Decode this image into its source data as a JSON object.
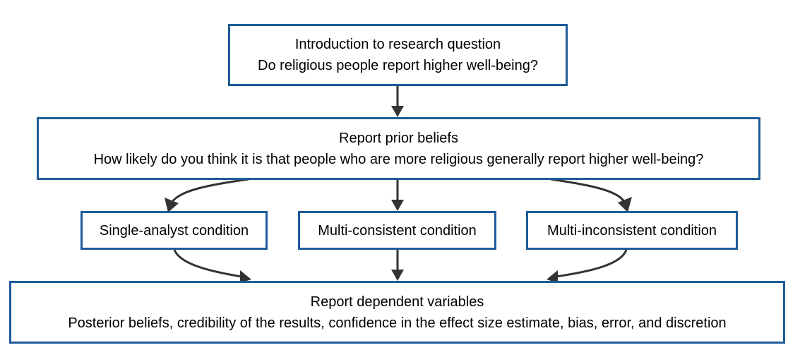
{
  "nodes": {
    "intro": {
      "line1": "Introduction to research question",
      "line2": "Do religious people report higher well-being?"
    },
    "prior": {
      "line1": "Report prior beliefs",
      "line2": "How likely do you think it is that people who are more religious generally report higher well-being?"
    },
    "single": {
      "line1": "Single-analyst condition"
    },
    "consistent": {
      "line1": "Multi-consistent condition"
    },
    "inconsistent": {
      "line1": "Multi-inconsistent condition"
    },
    "dependent": {
      "line1": "Report dependent variables",
      "line2": "Posterior beliefs, credibility of the results, confidence in the effect size estimate, bias, error, and discretion"
    }
  },
  "edges": [
    {
      "from": "intro",
      "to": "prior"
    },
    {
      "from": "prior",
      "to": "single"
    },
    {
      "from": "prior",
      "to": "consistent"
    },
    {
      "from": "prior",
      "to": "inconsistent"
    },
    {
      "from": "single",
      "to": "dependent"
    },
    {
      "from": "consistent",
      "to": "dependent"
    },
    {
      "from": "inconsistent",
      "to": "dependent"
    }
  ],
  "colors": {
    "node_border": "#1f5c99",
    "arrow": "#333333"
  }
}
